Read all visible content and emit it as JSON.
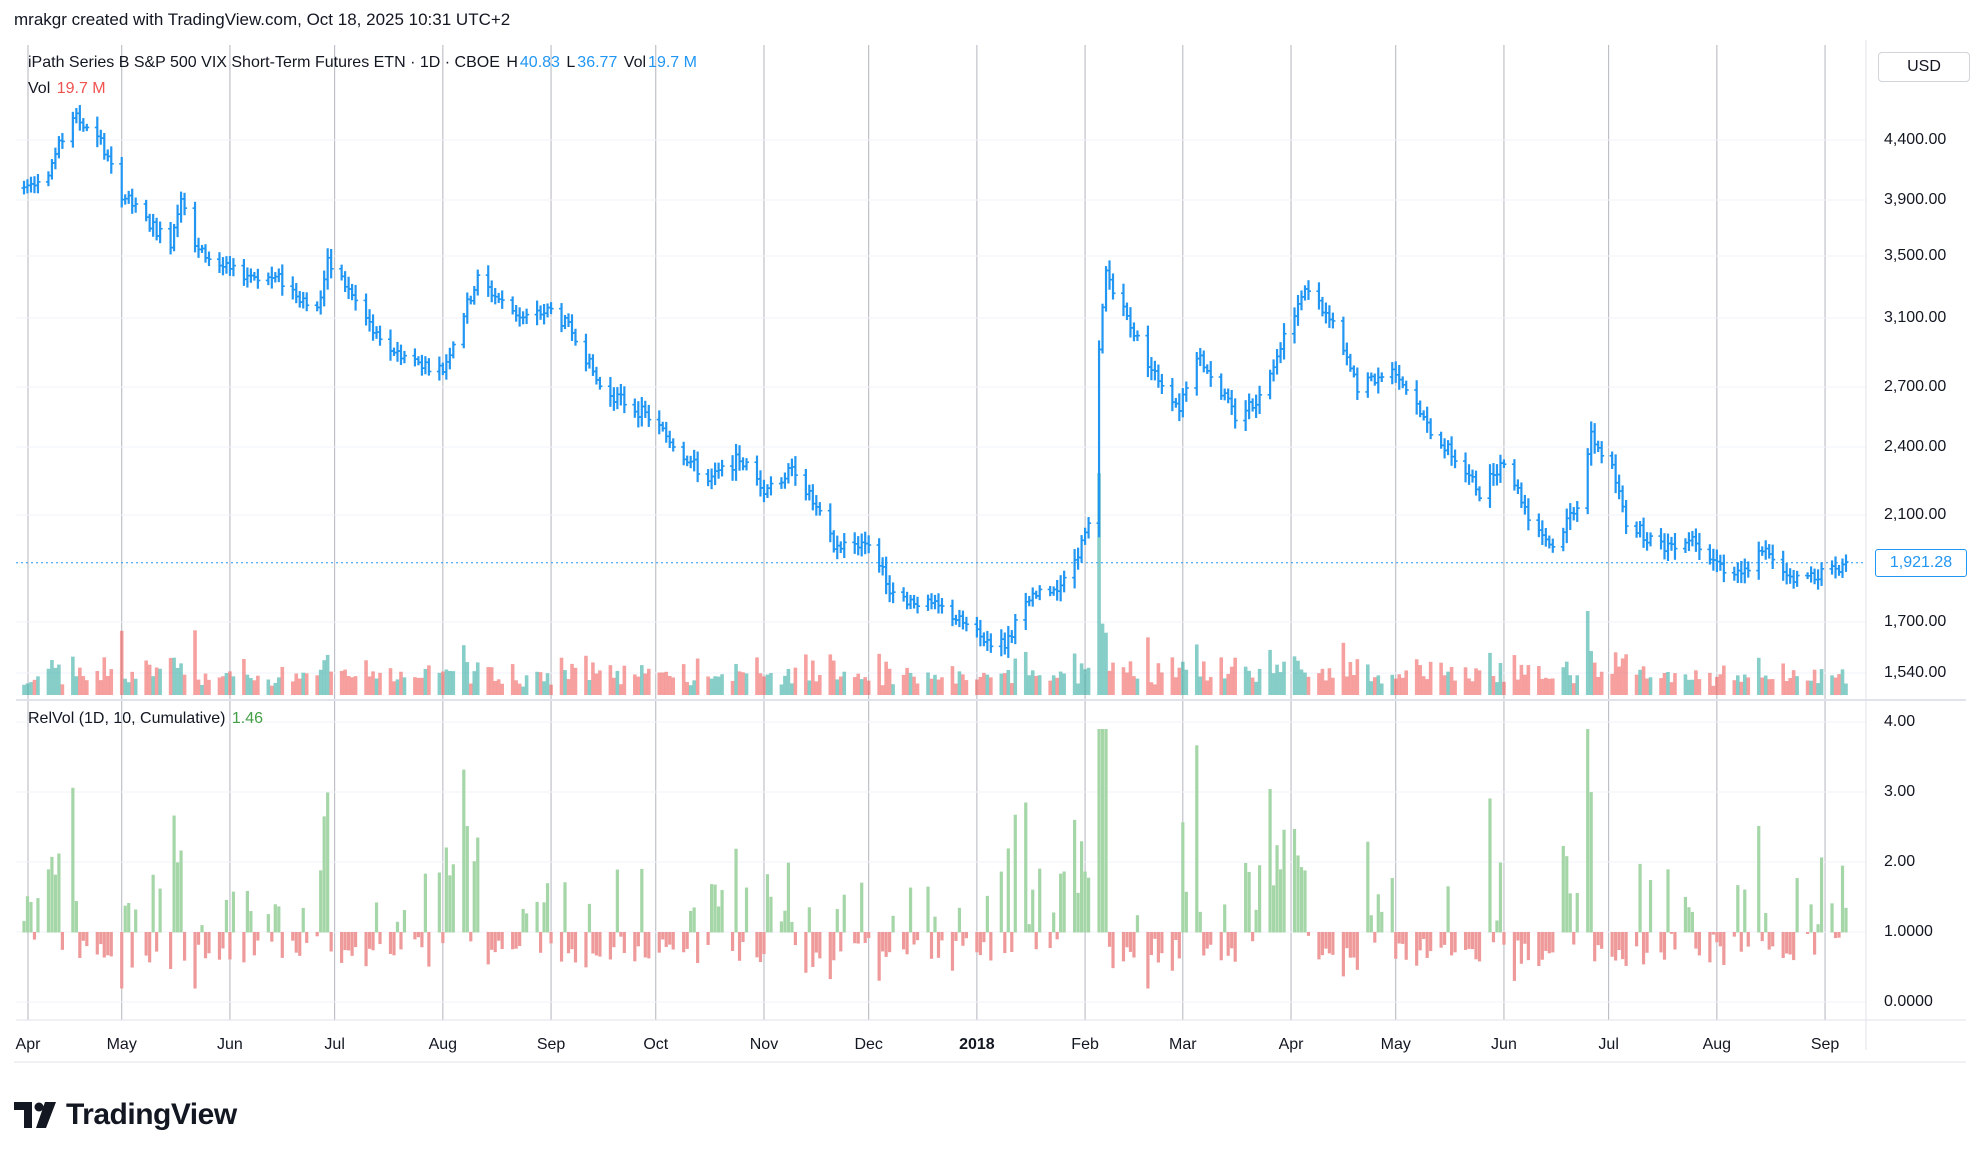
{
  "header": {
    "credit": "mrakgr created with TradingView.com, Oct 18, 2025 10:31 UTC+2"
  },
  "legend": {
    "title": "iPath Series B S&P 500 VIX Short-Term Futures ETN · 1D · CBOE",
    "h_key": "H",
    "h_val": "40.83",
    "l_key": "L",
    "l_val": "36.77",
    "vol_key": "Vol",
    "vol_val": "19.7 M",
    "vol_pane_key": "Vol",
    "vol_pane_val": "19.7 M",
    "relvol_key": "RelVol (1D, 10, Cumulative)",
    "relvol_val": "1.46"
  },
  "currency": "USD",
  "last_price": "1,921.28",
  "brand": "TradingView",
  "colors": {
    "up": "#2196f3",
    "vol_up": "#26a69a",
    "vol_down": "#ef5350",
    "relvol_up": "#a5d6a7",
    "relvol_down": "#ef9a9a"
  },
  "chart_data": [
    {
      "type": "ohlc",
      "y_axis_ticks": [
        "4,400.00",
        "3,900.00",
        "3,500.00",
        "3,100.00",
        "2,700.00",
        "2,400.00",
        "2,100.00",
        "1,700.00",
        "1,540.00"
      ],
      "x_axis_ticks": [
        "Apr",
        "May",
        "Jun",
        "Jul",
        "Aug",
        "Sep",
        "Oct",
        "Nov",
        "Dec",
        "2018",
        "Feb",
        "Mar",
        "Apr",
        "May",
        "Jun",
        "Jul",
        "Aug",
        "Sep"
      ],
      "grid": true,
      "anchors": [
        [
          "2017-04-03",
          4000
        ],
        [
          "2017-04-10",
          4150
        ],
        [
          "2017-04-17",
          4600
        ],
        [
          "2017-04-24",
          4450
        ],
        [
          "2017-05-01",
          3950
        ],
        [
          "2017-05-08",
          3750
        ],
        [
          "2017-05-15",
          3600
        ],
        [
          "2017-05-18",
          3950
        ],
        [
          "2017-05-22",
          3550
        ],
        [
          "2017-06-01",
          3400
        ],
        [
          "2017-06-15",
          3350
        ],
        [
          "2017-06-26",
          3150
        ],
        [
          "2017-06-29",
          3450
        ],
        [
          "2017-07-03",
          3350
        ],
        [
          "2017-07-14",
          2950
        ],
        [
          "2017-07-24",
          2850
        ],
        [
          "2017-08-01",
          2800
        ],
        [
          "2017-08-11",
          3350
        ],
        [
          "2017-08-18",
          3200
        ],
        [
          "2017-08-24",
          3100
        ],
        [
          "2017-09-01",
          3150
        ],
        [
          "2017-09-08",
          3000
        ],
        [
          "2017-09-15",
          2700
        ],
        [
          "2017-09-29",
          2550
        ],
        [
          "2017-10-06",
          2420
        ],
        [
          "2017-10-16",
          2250
        ],
        [
          "2017-10-25",
          2350
        ],
        [
          "2017-11-01",
          2220
        ],
        [
          "2017-11-10",
          2300
        ],
        [
          "2017-11-21",
          1980
        ],
        [
          "2017-12-01",
          2000
        ],
        [
          "2017-12-08",
          1800
        ],
        [
          "2017-12-22",
          1750
        ],
        [
          "2018-01-02",
          1650
        ],
        [
          "2018-01-09",
          1630
        ],
        [
          "2018-01-16",
          1780
        ],
        [
          "2018-01-26",
          1850
        ],
        [
          "2018-02-02",
          2050
        ],
        [
          "2018-02-05",
          2900
        ],
        [
          "2018-02-07",
          3400
        ],
        [
          "2018-02-12",
          3150
        ],
        [
          "2018-02-20",
          2800
        ],
        [
          "2018-02-28",
          2600
        ],
        [
          "2018-03-05",
          2900
        ],
        [
          "2018-03-16",
          2550
        ],
        [
          "2018-03-23",
          2650
        ],
        [
          "2018-04-02",
          3150
        ],
        [
          "2018-04-06",
          3300
        ],
        [
          "2018-04-13",
          3050
        ],
        [
          "2018-04-20",
          2700
        ],
        [
          "2018-05-01",
          2800
        ],
        [
          "2018-05-10",
          2500
        ],
        [
          "2018-05-18",
          2350
        ],
        [
          "2018-05-25",
          2200
        ],
        [
          "2018-06-01",
          2350
        ],
        [
          "2018-06-08",
          2100
        ],
        [
          "2018-06-15",
          1980
        ],
        [
          "2018-06-22",
          2150
        ],
        [
          "2018-06-26",
          2450
        ],
        [
          "2018-07-02",
          2300
        ],
        [
          "2018-07-06",
          2080
        ],
        [
          "2018-07-16",
          1980
        ],
        [
          "2018-07-25",
          2020
        ],
        [
          "2018-08-03",
          1900
        ],
        [
          "2018-08-10",
          1880
        ],
        [
          "2018-08-14",
          1980
        ],
        [
          "2018-08-17",
          1920
        ],
        [
          "2018-08-24",
          1860
        ],
        [
          "2018-09-04",
          1900
        ],
        [
          "2018-09-07",
          1921.28
        ]
      ]
    },
    {
      "type": "bar",
      "name": "Vol",
      "x_axis_ticks": [
        "Apr",
        "May",
        "Jun",
        "Jul",
        "Aug",
        "Sep",
        "Oct",
        "Nov",
        "Dec",
        "2018",
        "Feb",
        "Mar",
        "Apr",
        "May",
        "Jun",
        "Jul",
        "Aug",
        "Sep"
      ]
    },
    {
      "type": "bar",
      "name": "RelVol (1D, 10, Cumulative)",
      "baseline": 1.0,
      "y_axis_ticks": [
        "4.00",
        "3.00",
        "2.00",
        "1.0000",
        "0.0000"
      ],
      "ylim": [
        0,
        4
      ]
    }
  ]
}
